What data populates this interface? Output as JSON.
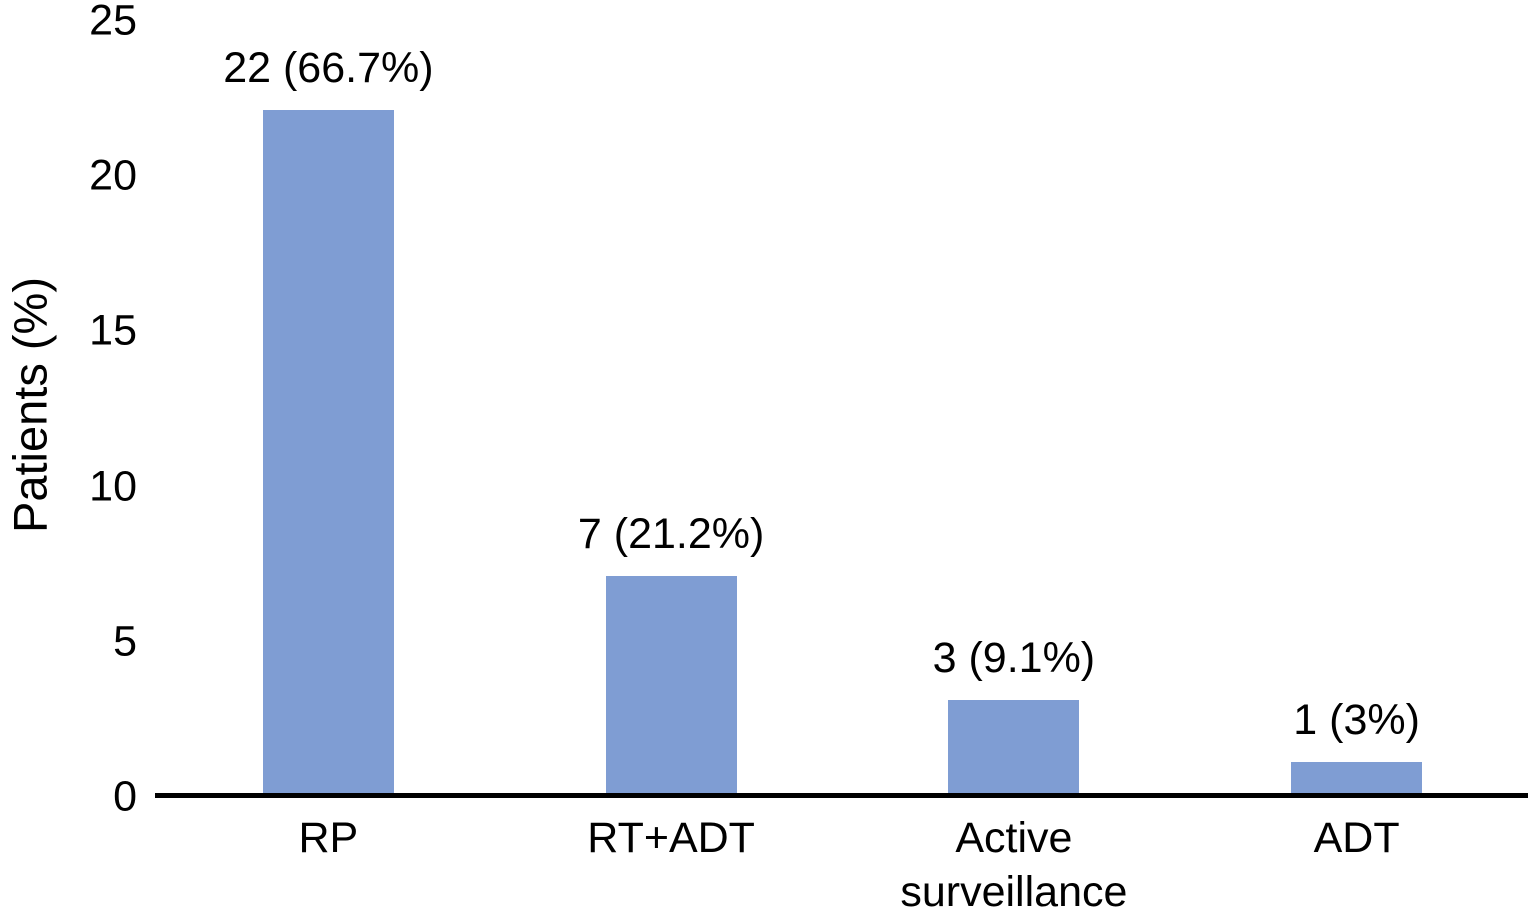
{
  "chart_data": {
    "type": "bar",
    "title": "",
    "categories": [
      "RP",
      "RT+ADT",
      "Active surveillance",
      "ADT"
    ],
    "values": [
      22,
      7,
      3,
      1
    ],
    "bar_labels": [
      "22 (66.7%)",
      "7 (21.2%)",
      "3 (9.1%)",
      "1 (3%)"
    ],
    "xlabel": "",
    "ylabel": "Patients (%)",
    "ylim": [
      0,
      25
    ],
    "yticks": [
      0,
      5,
      10,
      15,
      20,
      25
    ],
    "bar_color": "#7F9DD3",
    "axis_color": "#000000",
    "text_color": "#000000",
    "grid": false,
    "legend_position": "none"
  }
}
